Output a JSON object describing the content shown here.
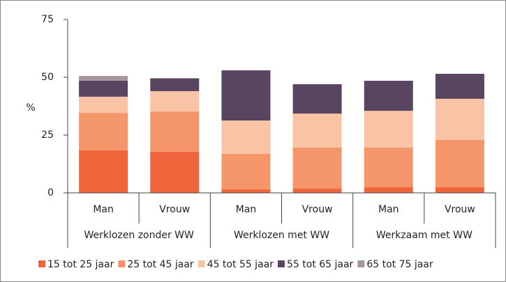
{
  "chart_data": {
    "type": "stacked_bar",
    "y_label": "%",
    "categories": [
      "Man",
      "Vrouw",
      "Man",
      "Vrouw",
      "Man",
      "Vrouw"
    ],
    "groups": [
      "Werklozen zonder WW",
      "Werklozen met WW",
      "Werkzaam met WW"
    ],
    "series": [
      {
        "name": "15 tot 25 jaar",
        "color": "#f0663c",
        "values": [
          18.4,
          17.8,
          1.5,
          1.8,
          2.4,
          2.4
        ]
      },
      {
        "name": "25 tot 45 jaar",
        "color": "#f4966a",
        "values": [
          16.2,
          17.4,
          15.4,
          17.8,
          17.2,
          20.5
        ]
      },
      {
        "name": "45 tot 55 jaar",
        "color": "#f9c3a5",
        "values": [
          7.0,
          8.8,
          14.4,
          14.7,
          15.9,
          17.8
        ]
      },
      {
        "name": "55 tot 65 jaar",
        "color": "#5a4560",
        "values": [
          6.9,
          5.4,
          21.7,
          12.7,
          13.0,
          10.8
        ]
      },
      {
        "name": "65 tot 75 jaar",
        "color": "#a8969f",
        "values": [
          2.1,
          0.3,
          0,
          0,
          0,
          0
        ]
      }
    ],
    "ylim": [
      0,
      75
    ],
    "yticks": [
      0,
      25,
      50,
      75
    ],
    "legend": "bottom"
  }
}
